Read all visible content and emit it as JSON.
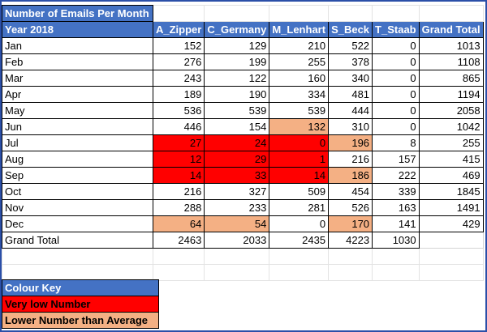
{
  "title": "Number of Emails Per Month",
  "header": [
    "Year 2018",
    "A_Zipper",
    "C_Germany",
    "M_Lenhart",
    "S_Beck",
    "T_Staab",
    "Grand Total"
  ],
  "rows": [
    {
      "label": "Jan",
      "values": [
        "152",
        "129",
        "210",
        "522",
        "0",
        "1013"
      ],
      "colors": [
        "",
        "",
        "",
        "",
        "",
        ""
      ]
    },
    {
      "label": "Feb",
      "values": [
        "276",
        "199",
        "255",
        "378",
        "0",
        "1108"
      ],
      "colors": [
        "",
        "",
        "",
        "",
        "",
        ""
      ]
    },
    {
      "label": "Mar",
      "values": [
        "243",
        "122",
        "160",
        "340",
        "0",
        "865"
      ],
      "colors": [
        "",
        "",
        "",
        "",
        "",
        ""
      ]
    },
    {
      "label": "Apr",
      "values": [
        "189",
        "190",
        "334",
        "481",
        "0",
        "1194"
      ],
      "colors": [
        "",
        "",
        "",
        "",
        "",
        ""
      ]
    },
    {
      "label": "May",
      "values": [
        "536",
        "539",
        "539",
        "444",
        "0",
        "2058"
      ],
      "colors": [
        "",
        "",
        "",
        "",
        "",
        ""
      ]
    },
    {
      "label": "Jun",
      "values": [
        "446",
        "154",
        "132",
        "310",
        "0",
        "1042"
      ],
      "colors": [
        "",
        "",
        "orange",
        "",
        "",
        ""
      ]
    },
    {
      "label": "Jul",
      "values": [
        "27",
        "24",
        "0",
        "196",
        "8",
        "255"
      ],
      "colors": [
        "red",
        "red",
        "red",
        "orange",
        "",
        ""
      ]
    },
    {
      "label": "Aug",
      "values": [
        "12",
        "29",
        "1",
        "216",
        "157",
        "415"
      ],
      "colors": [
        "red",
        "red",
        "red",
        "",
        "",
        ""
      ]
    },
    {
      "label": "Sep",
      "values": [
        "14",
        "33",
        "14",
        "186",
        "222",
        "469"
      ],
      "colors": [
        "red",
        "red",
        "red",
        "orange",
        "",
        ""
      ]
    },
    {
      "label": "Oct",
      "values": [
        "216",
        "327",
        "509",
        "454",
        "339",
        "1845"
      ],
      "colors": [
        "",
        "",
        "",
        "",
        "",
        ""
      ]
    },
    {
      "label": "Nov",
      "values": [
        "288",
        "233",
        "281",
        "526",
        "163",
        "1491"
      ],
      "colors": [
        "",
        "",
        "",
        "",
        "",
        ""
      ]
    },
    {
      "label": "Dec",
      "values": [
        "64",
        "54",
        "0",
        "170",
        "141",
        "429"
      ],
      "colors": [
        "orange",
        "orange",
        "",
        "orange",
        "",
        ""
      ]
    },
    {
      "label": "Grand Total",
      "values": [
        "2463",
        "2033",
        "2435",
        "4223",
        "1030",
        ""
      ],
      "colors": [
        "",
        "",
        "",
        "",
        "",
        ""
      ]
    }
  ],
  "colour_key": {
    "title": "Colour Key",
    "very_low": "Very low Number",
    "lower_avg": "Lower Number than Average"
  },
  "colors": {
    "header_blue": "#4472c4",
    "very_low_red": "#ff0000",
    "lower_avg_orange": "#f4b084",
    "frame_blue": "#2b4fa8"
  }
}
